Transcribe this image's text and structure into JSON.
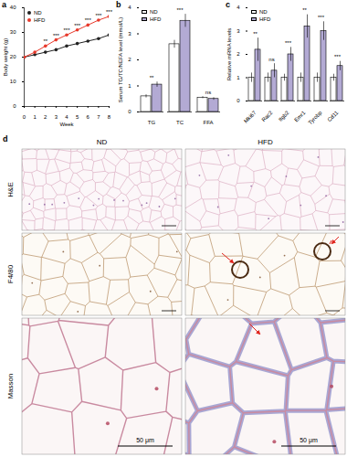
{
  "chart_data": [
    {
      "type": "line",
      "title": "a",
      "xlabel": "Week",
      "ylabel": "Body weight (g)",
      "x": [
        0,
        1,
        2,
        3,
        4,
        5,
        6,
        7,
        8
      ],
      "xlim": [
        0,
        8
      ],
      "xticks": [
        0,
        1,
        2,
        3,
        4,
        5,
        6,
        7,
        8
      ],
      "ylim": [
        0,
        40
      ],
      "yticks": [
        0,
        10,
        20,
        30,
        40
      ],
      "legend": "top-left",
      "series": [
        {
          "name": "ND",
          "color": "#222222",
          "marker": "circle",
          "values": [
            20,
            21,
            22,
            23,
            24.5,
            25.5,
            26.5,
            27.5,
            29
          ]
        },
        {
          "name": "HFD",
          "color": "#e8392b",
          "marker": "circle",
          "values": [
            20,
            22,
            24.5,
            27,
            29,
            31,
            33,
            35,
            36.5
          ]
        }
      ],
      "annotations": [
        null,
        null,
        "**",
        "***",
        "***",
        "***",
        "***",
        "***",
        "***"
      ]
    },
    {
      "type": "bar",
      "title": "b",
      "ylabel": "Serum TG/TC/NEFA level (mmol/L)",
      "categories": [
        "TG",
        "TC",
        "FFA"
      ],
      "ylim": [
        0,
        4
      ],
      "yticks": [
        0,
        1,
        2,
        3,
        4
      ],
      "legend": "top-left",
      "series": [
        {
          "name": "ND",
          "color": "#ffffff",
          "values": [
            0.6,
            2.6,
            0.55
          ],
          "errors": [
            0.06,
            0.15,
            0.04
          ]
        },
        {
          "name": "HFD",
          "color": "#b3aad4",
          "values": [
            1.05,
            3.5,
            0.5
          ],
          "errors": [
            0.1,
            0.25,
            0.05
          ]
        }
      ],
      "annotations": [
        "**",
        "***",
        "ns"
      ]
    },
    {
      "type": "bar",
      "title": "c",
      "ylabel": "Relative mRNA levels",
      "categories": [
        "Mki67",
        "Rac2",
        "Itgb2",
        "Emr1",
        "Tyrobp",
        "Cd11"
      ],
      "ylim": [
        0,
        4
      ],
      "yticks": [
        0,
        1,
        2,
        3,
        4
      ],
      "legend": "top-left",
      "series": [
        {
          "name": "ND",
          "color": "#ffffff",
          "values": [
            1,
            1,
            1,
            1,
            1,
            1
          ],
          "errors": [
            0.2,
            0.2,
            0.15,
            0.2,
            0.2,
            0.15
          ]
        },
        {
          "name": "HFD",
          "color": "#b3aad4",
          "values": [
            2.2,
            1.3,
            2.0,
            3.2,
            3.0,
            1.5
          ],
          "errors": [
            0.5,
            0.3,
            0.3,
            0.5,
            0.4,
            0.2
          ]
        }
      ],
      "annotations": [
        "**",
        "ns",
        "***",
        "**",
        "***",
        "***"
      ]
    }
  ],
  "panel_d": {
    "title": "d",
    "columns": [
      "ND",
      "HFD"
    ],
    "rows": [
      "H&E",
      "F4/80",
      "Masson"
    ],
    "scale_bar": "50 μm"
  }
}
